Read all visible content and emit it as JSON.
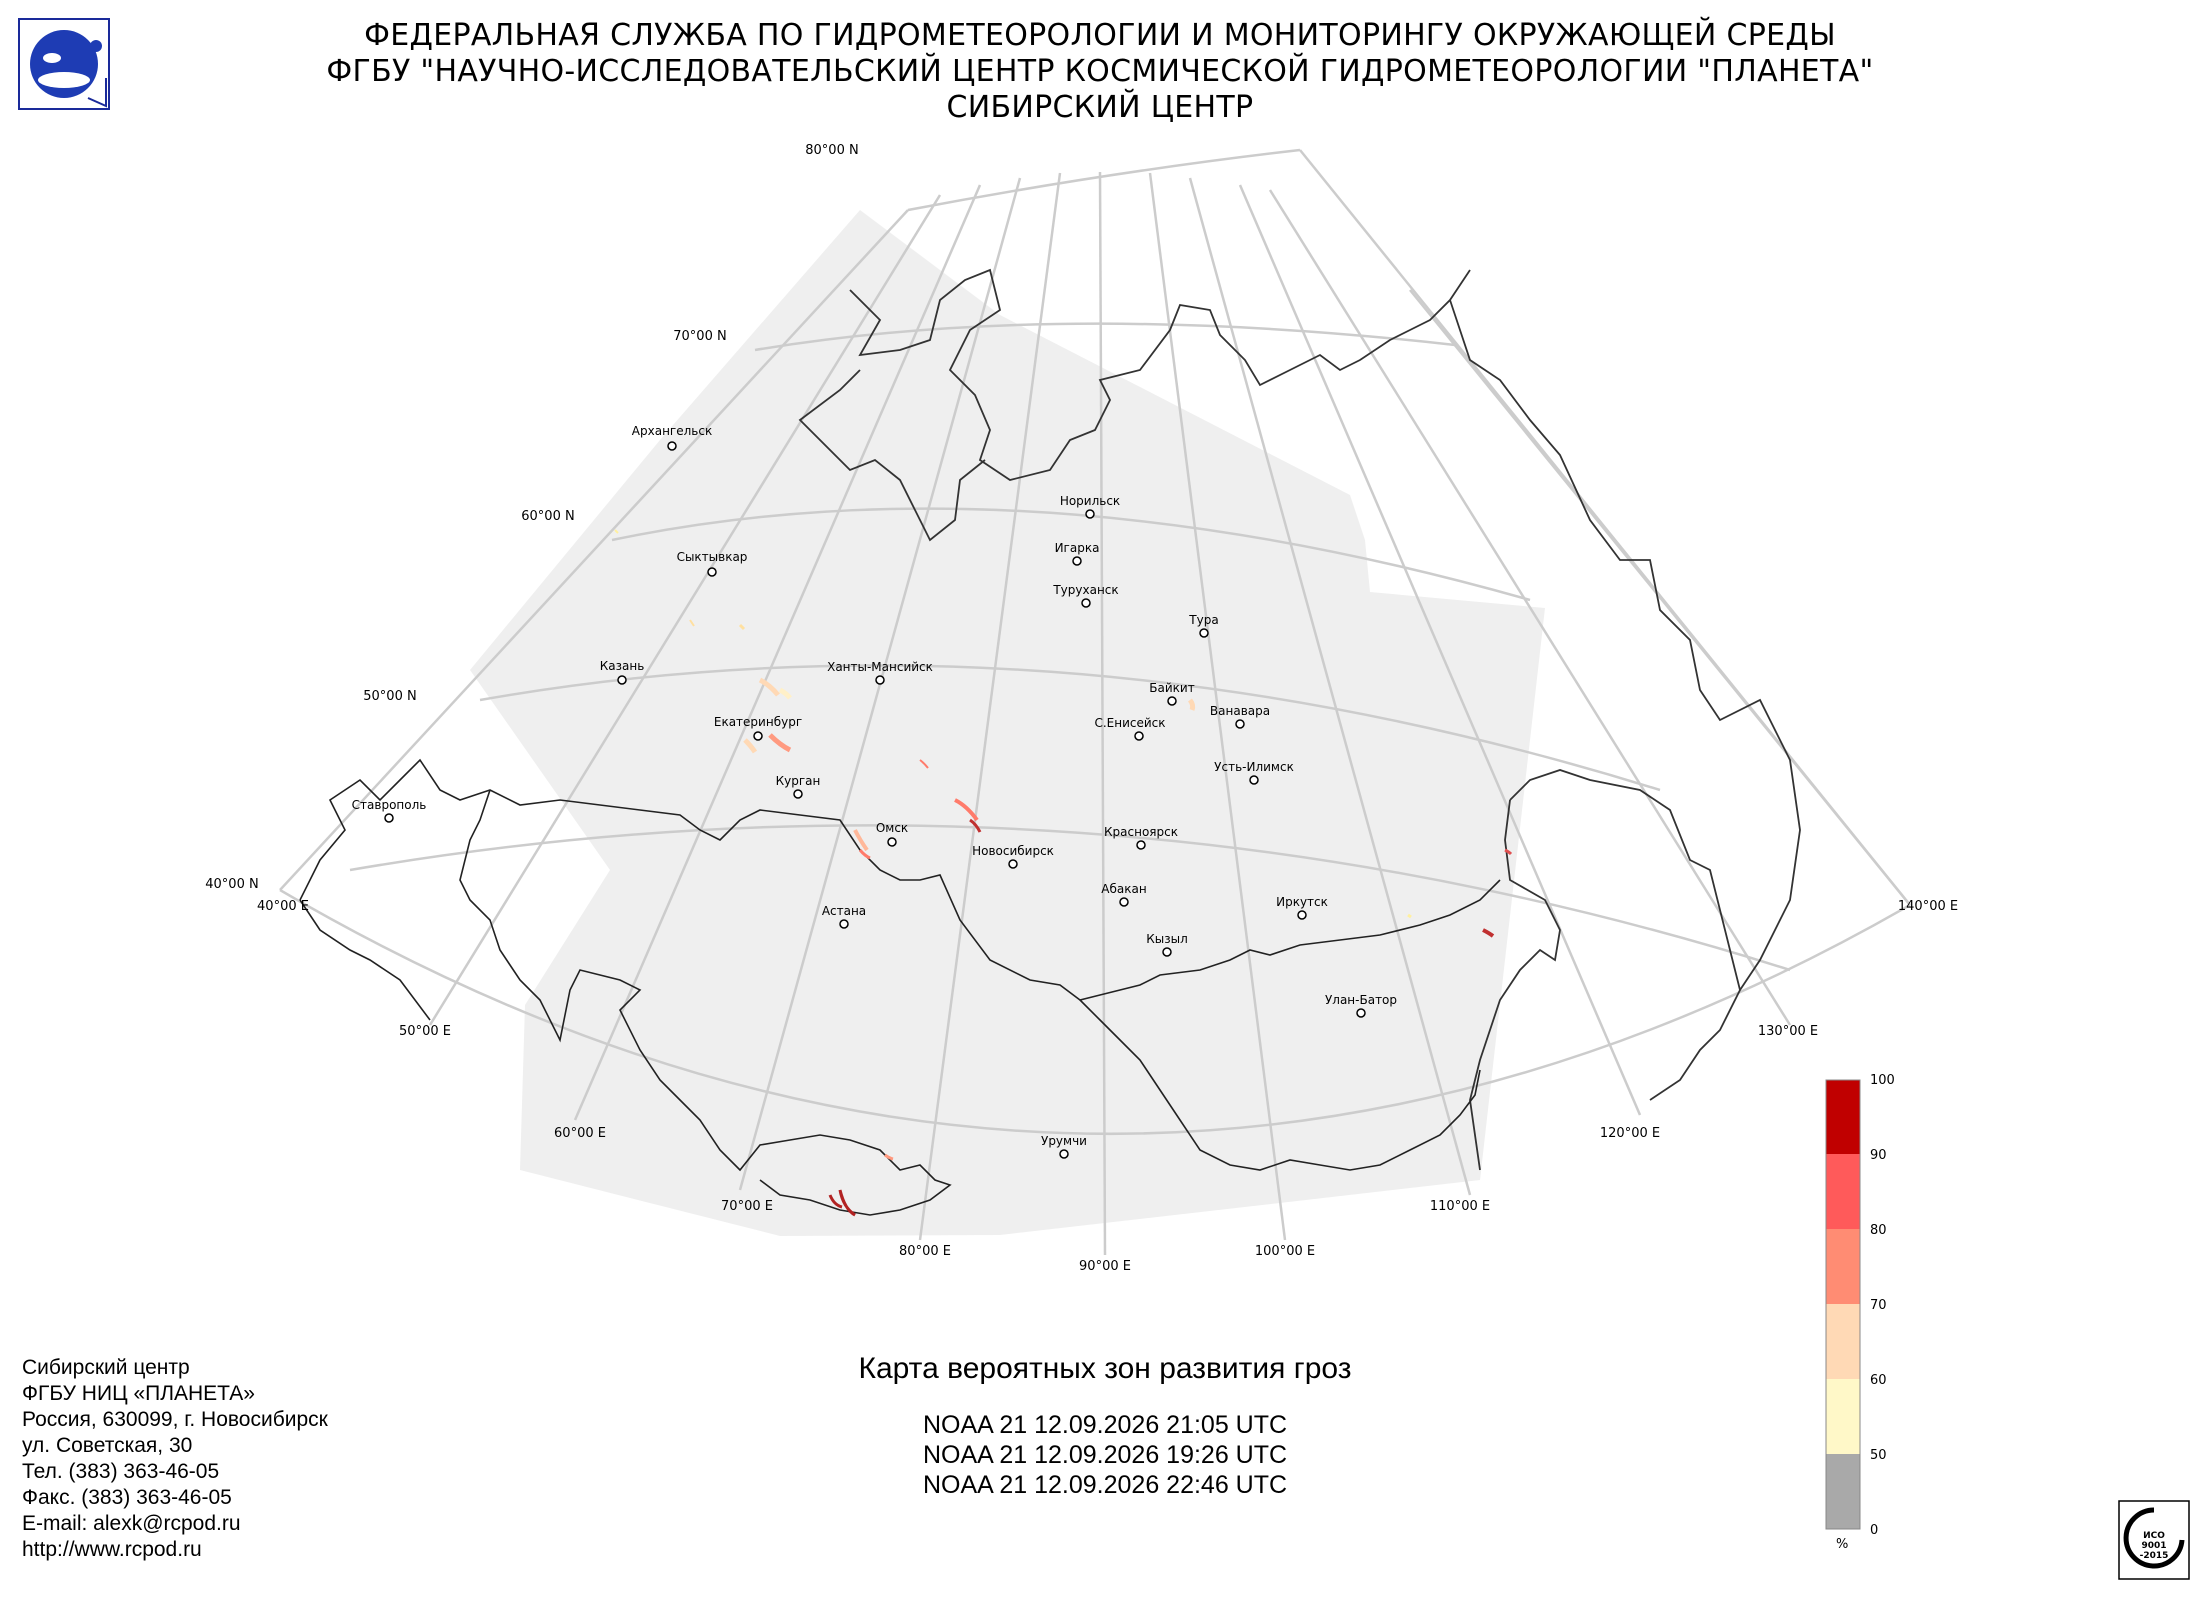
{
  "header": {
    "line1": "ФЕДЕРАЛЬНАЯ СЛУЖБА ПО ГИДРОМЕТЕОРОЛОГИИ И МОНИТОРИНГУ ОКРУЖАЮЩЕЙ СРЕДЫ",
    "line2": "ФГБУ \"НАУЧНО-ИССЛЕДОВАТЕЛЬСКИЙ ЦЕНТР КОСМИЧЕСКОЙ ГИДРОМЕТЕОРОЛОГИИ \"ПЛАНЕТА\"",
    "line3": "СИБИРСКИЙ ЦЕНТР"
  },
  "latitude_labels": [
    "80°00 N",
    "70°00 N",
    "60°00 N",
    "50°00 N",
    "40°00 N"
  ],
  "longitude_labels": [
    "40°00 E",
    "50°00 E",
    "60°00 E",
    "70°00 E",
    "80°00 E",
    "90°00 E",
    "100°00 E",
    "110°00 E",
    "120°00 E",
    "130°00 E",
    "140°00 E"
  ],
  "cities": [
    "Архангельск",
    "Сыктывкар",
    "Казань",
    "Екатеринбург",
    "Курган",
    "Ставрополь",
    "Ханты-Мансийск",
    "Омск",
    "Астана",
    "Новосибирск",
    "Норильск",
    "Игарка",
    "Туруханск",
    "Тура",
    "Байкит",
    "Ванавара",
    "С.Енисейск",
    "Усть-Илимск",
    "Красноярск",
    "Абакан",
    "Кызыл",
    "Иркутск",
    "Улан-Батор",
    "Урумчи"
  ],
  "map_title": "Карта вероятных зон развития гроз",
  "passes": [
    "NOAA 21 12.09.2026  21:05 UTC",
    "NOAA 21 12.09.2026  19:26 UTC",
    "NOAA 21 12.09.2026  22:46 UTC"
  ],
  "contacts": [
    "Сибирский центр",
    "ФГБУ НИЦ «ПЛАНЕТА»",
    "Россия, 630099, г. Новосибирск",
    "ул. Советская, 30",
    "Тел. (383) 363-46-05",
    "Факс. (383) 363-46-05",
    "E-mail: alexk@rcpod.ru",
    "http://www.rcpod.ru"
  ],
  "legend": {
    "unit": "%",
    "ticks": [
      "0",
      "50",
      "60",
      "70",
      "80",
      "90",
      "100"
    ],
    "colors": [
      "#a9a9a9",
      "#fff8c8",
      "#ffd9b5",
      "#ff8c73",
      "#ff5a5a",
      "#c00000"
    ]
  },
  "iso_badge": {
    "line1": "ИСО",
    "line2": "9001",
    "line3": "-2015"
  }
}
